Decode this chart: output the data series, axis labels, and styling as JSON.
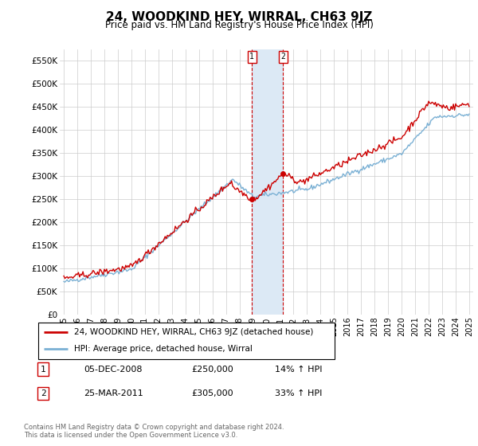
{
  "title": "24, WOODKIND HEY, WIRRAL, CH63 9JZ",
  "subtitle": "Price paid vs. HM Land Registry's House Price Index (HPI)",
  "title_fontsize": 11,
  "subtitle_fontsize": 8.5,
  "ylabel_ticks": [
    "£0",
    "£50K",
    "£100K",
    "£150K",
    "£200K",
    "£250K",
    "£300K",
    "£350K",
    "£400K",
    "£450K",
    "£500K",
    "£550K"
  ],
  "ytick_values": [
    0,
    50000,
    100000,
    150000,
    200000,
    250000,
    300000,
    350000,
    400000,
    450000,
    500000,
    550000
  ],
  "ylim": [
    0,
    575000
  ],
  "sale1_x": 2008.92,
  "sale1_price": 250000,
  "sale2_x": 2011.23,
  "sale2_price": 305000,
  "legend_line1": "24, WOODKIND HEY, WIRRAL, CH63 9JZ (detached house)",
  "legend_line2": "HPI: Average price, detached house, Wirral",
  "footer1": "Contains HM Land Registry data © Crown copyright and database right 2024.",
  "footer2": "This data is licensed under the Open Government Licence v3.0.",
  "table_row1": [
    "1",
    "05-DEC-2008",
    "£250,000",
    "14% ↑ HPI"
  ],
  "table_row2": [
    "2",
    "25-MAR-2011",
    "£305,000",
    "33% ↑ HPI"
  ],
  "red_color": "#cc0000",
  "blue_color": "#7ab0d4",
  "highlight_color": "#dce9f5",
  "grid_color": "#cccccc",
  "xlim_left": 1994.7,
  "xlim_right": 2025.3,
  "xtick_start": 1995,
  "xtick_end": 2025
}
